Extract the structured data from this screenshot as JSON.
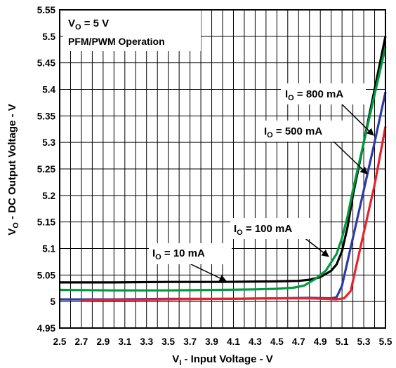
{
  "chart_data": {
    "type": "line",
    "xlabel": {
      "main": "V",
      "sub": "I",
      "rest": " - Input Voltage - V"
    },
    "ylabel": {
      "main": "V",
      "sub": "O",
      "rest": " - DC Output Voltage - V"
    },
    "xlim": [
      2.5,
      5.5
    ],
    "ylim": [
      4.95,
      5.55
    ],
    "xticks": [
      "2.5",
      "2.7",
      "2.9",
      "3.1",
      "3.3",
      "3.5",
      "3.7",
      "3.9",
      "4.1",
      "4.3",
      "4.5",
      "4.7",
      "4.9",
      "5.1",
      "5.3",
      "5.5"
    ],
    "yticks": [
      "4.95",
      "5",
      "5.05",
      "5.1",
      "5.15",
      "5.2",
      "5.25",
      "5.3",
      "5.35",
      "5.4",
      "5.45",
      "5.5",
      "5.55"
    ],
    "grid": true,
    "legend": "none",
    "info_box": {
      "line1_main": "V",
      "line1_sub": "O",
      "line1_rest": " = 5 V",
      "line2": "PFM/PWM Operation"
    },
    "series": [
      {
        "color": "#000000",
        "label": {
          "main": "I",
          "sub": "O",
          "rest": " = 10 mA"
        },
        "x": [
          2.5,
          3.0,
          3.5,
          4.0,
          4.5,
          4.7,
          4.8,
          4.9,
          5.0,
          5.05,
          5.1,
          5.15,
          5.2,
          5.3,
          5.4,
          5.5
        ],
        "y": [
          5.036,
          5.036,
          5.037,
          5.037,
          5.038,
          5.039,
          5.041,
          5.046,
          5.058,
          5.07,
          5.095,
          5.14,
          5.2,
          5.3,
          5.4,
          5.5
        ]
      },
      {
        "color": "#009a3e",
        "label": {
          "main": "I",
          "sub": "O",
          "rest": " = 100 mA"
        },
        "x": [
          2.5,
          3.0,
          3.5,
          4.0,
          4.3,
          4.5,
          4.65,
          4.75,
          4.85,
          4.95,
          5.05,
          5.1,
          5.15,
          5.2,
          5.3,
          5.4,
          5.5
        ],
        "y": [
          5.022,
          5.021,
          5.021,
          5.022,
          5.023,
          5.024,
          5.026,
          5.03,
          5.042,
          5.058,
          5.09,
          5.12,
          5.16,
          5.21,
          5.3,
          5.39,
          5.48
        ]
      },
      {
        "color": "#2d3aa8",
        "label": {
          "main": "I",
          "sub": "O",
          "rest": " = 500 mA"
        },
        "x": [
          2.5,
          3.0,
          3.5,
          4.0,
          4.5,
          4.8,
          5.0,
          5.05,
          5.1,
          5.2,
          5.3,
          5.4,
          5.5
        ],
        "y": [
          5.004,
          5.004,
          5.005,
          5.005,
          5.006,
          5.007,
          5.006,
          5.008,
          5.03,
          5.12,
          5.21,
          5.3,
          5.395
        ]
      },
      {
        "color": "#e8222c",
        "label": {
          "main": "I",
          "sub": "O",
          "rest": " = 800 mA"
        },
        "x": [
          2.7,
          3.0,
          3.5,
          4.0,
          4.5,
          4.8,
          4.95,
          5.05,
          5.12,
          5.18,
          5.3,
          5.4,
          5.5
        ],
        "y": [
          5.002,
          5.003,
          5.004,
          5.005,
          5.006,
          5.006,
          5.005,
          5.004,
          5.006,
          5.02,
          5.13,
          5.22,
          5.33
        ]
      }
    ]
  }
}
